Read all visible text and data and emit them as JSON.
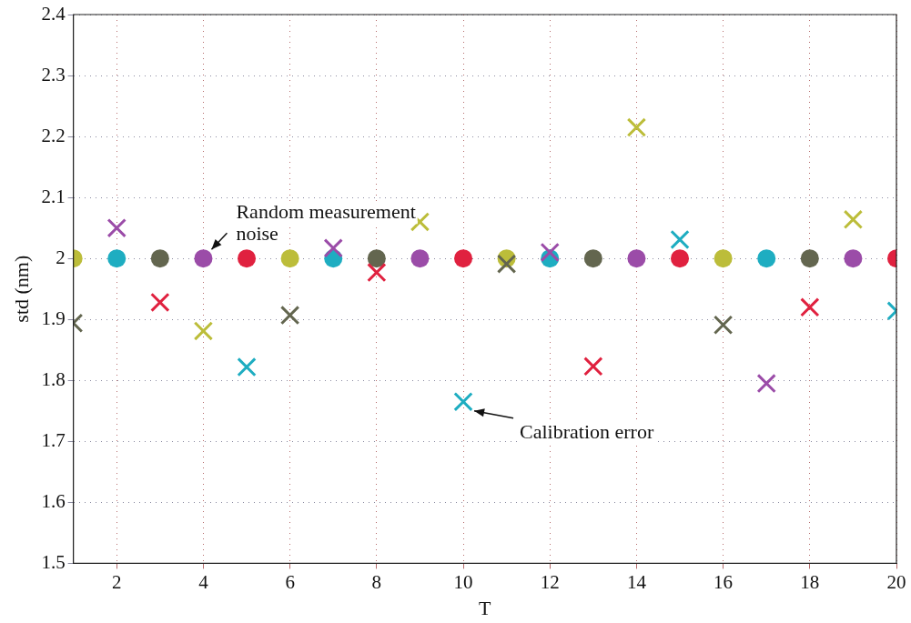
{
  "chart_data": {
    "type": "scatter",
    "xlabel": "T",
    "ylabel": "std (nm)",
    "xlim": [
      1,
      20
    ],
    "xticks": [
      2,
      4,
      6,
      8,
      10,
      12,
      14,
      16,
      18,
      20
    ],
    "ylim": [
      1.5,
      2.4
    ],
    "yticks": [
      1.5,
      1.6,
      1.7,
      1.8,
      1.9,
      2,
      2.1,
      2.2,
      2.3,
      2.4
    ],
    "grid": true,
    "legend": false,
    "series": [
      {
        "marker": "circle",
        "color": "#bcbd3a",
        "x": [
          1,
          6,
          11,
          16
        ],
        "values": [
          2,
          2,
          2,
          2
        ]
      },
      {
        "marker": "circle",
        "color": "#1eadc1",
        "x": [
          2,
          7,
          12,
          17
        ],
        "values": [
          2,
          2,
          2,
          2
        ]
      },
      {
        "marker": "circle",
        "color": "#63664f",
        "x": [
          3,
          8,
          13,
          18
        ],
        "values": [
          2,
          2,
          2,
          2
        ]
      },
      {
        "marker": "circle",
        "color": "#9b4ca8",
        "x": [
          4,
          9,
          14,
          19
        ],
        "values": [
          2,
          2,
          2,
          2
        ]
      },
      {
        "marker": "circle",
        "color": "#e0213f",
        "x": [
          5,
          10,
          15,
          20
        ],
        "values": [
          2,
          2,
          2,
          2
        ]
      },
      {
        "marker": "cross",
        "color": "#63664f",
        "x": [
          1,
          6,
          11,
          16
        ],
        "values": [
          1.894,
          1.907,
          1.991,
          1.891
        ]
      },
      {
        "marker": "cross",
        "color": "#9b4ca8",
        "x": [
          2,
          7,
          12,
          17
        ],
        "values": [
          2.05,
          2.017,
          2.01,
          1.795
        ]
      },
      {
        "marker": "cross",
        "color": "#e0213f",
        "x": [
          3,
          8,
          13,
          18
        ],
        "values": [
          1.928,
          1.977,
          1.823,
          1.92
        ]
      },
      {
        "marker": "cross",
        "color": "#bcbd3a",
        "x": [
          4,
          9,
          14,
          19
        ],
        "values": [
          1.881,
          2.06,
          2.215,
          2.064
        ]
      },
      {
        "marker": "cross",
        "color": "#1eadc1",
        "x": [
          5,
          10,
          15,
          20
        ],
        "values": [
          1.822,
          1.765,
          2.031,
          1.914
        ]
      }
    ],
    "annotations": [
      {
        "text": "Random measurement noise",
        "x": 4,
        "y": 2
      },
      {
        "text": "Calibration error",
        "x": 10,
        "y": 1.765
      }
    ]
  }
}
